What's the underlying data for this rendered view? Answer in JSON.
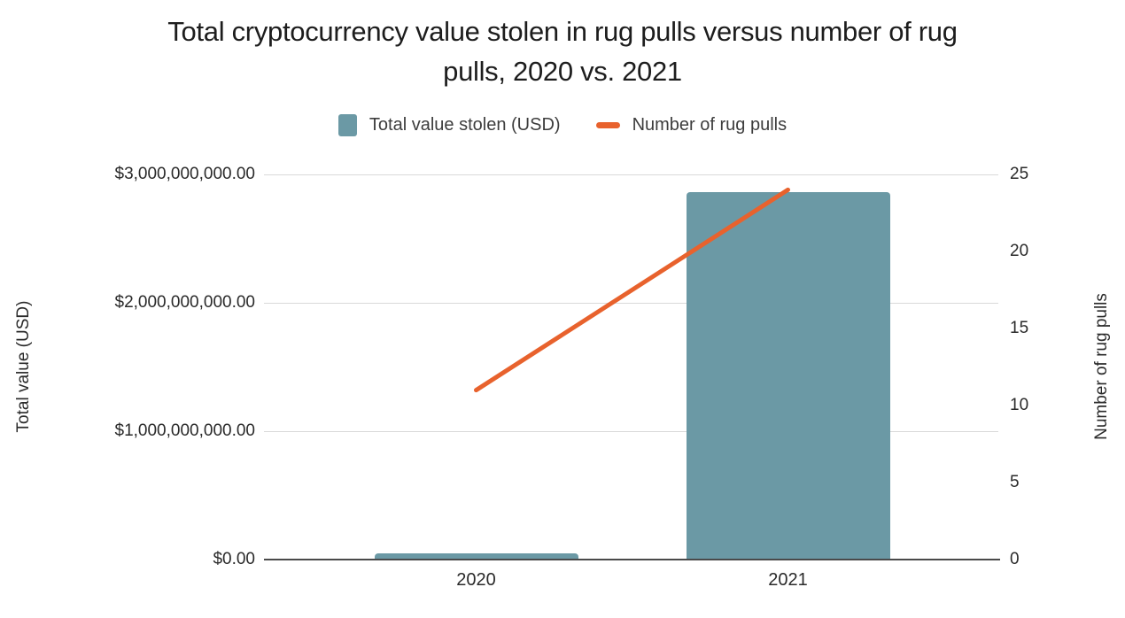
{
  "header": {
    "title_line1": "Total cryptocurrency value stolen in rug pulls versus number of rug",
    "title_line2": "pulls, 2020 vs. 2021"
  },
  "legend": [
    {
      "label": "Total value stolen (USD)",
      "swatch": "square"
    },
    {
      "label": "Number of rug pulls",
      "swatch": "dash"
    }
  ],
  "chart_data": {
    "type": "bar+line combo",
    "title": "Total cryptocurrency value stolen in rug pulls versus number of rug pulls, 2020 vs. 2021",
    "categories": [
      "2020",
      "2021"
    ],
    "series": [
      {
        "name": "Total value stolen (USD)",
        "type": "bar",
        "axis": "left",
        "values": [
          48000000,
          2860000000
        ],
        "color": "#6b99a5"
      },
      {
        "name": "Number of rug pulls",
        "type": "line",
        "axis": "right",
        "values": [
          11,
          24
        ],
        "color": "#e8622d"
      }
    ],
    "left_axis": {
      "title": "Total value (USD)",
      "min": 0,
      "max": 3000000000,
      "tick_values": [
        0,
        1000000000,
        2000000000,
        3000000000
      ],
      "tick_labels": [
        "$0.00",
        "$1,000,000,000.00",
        "$2,000,000,000.00",
        "$3,000,000,000.00"
      ]
    },
    "right_axis": {
      "title": "Number of rug pulls",
      "min": 0,
      "max": 25,
      "tick_values": [
        0,
        5,
        10,
        15,
        20,
        25
      ]
    },
    "grid": "horizontal gridlines at left-axis ticks only",
    "legend_position": "top center",
    "colors": {
      "bar": "#6b99a5",
      "line": "#e8622d",
      "gridline": "#d9d9d9",
      "axis_line": "#4a4a4a",
      "text": "#2a2a2a"
    }
  }
}
